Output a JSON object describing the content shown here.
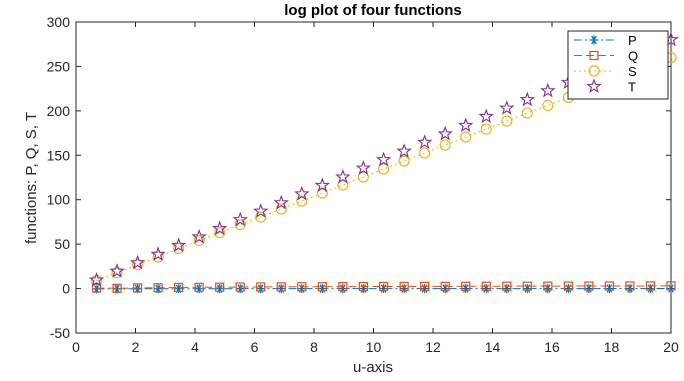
{
  "chart_data": {
    "type": "line",
    "title": "log plot of four functions",
    "xlabel": "u-axis",
    "ylabel": "functions: P, Q, S, T",
    "xlim": [
      0,
      20
    ],
    "ylim": [
      -50,
      300
    ],
    "xticks": [
      0,
      2,
      4,
      6,
      8,
      10,
      12,
      14,
      16,
      18,
      20
    ],
    "yticks": [
      -50,
      0,
      50,
      100,
      150,
      200,
      250,
      300
    ],
    "grid": false,
    "legend_position": "top-right",
    "x": [
      0.69,
      1.38,
      2.07,
      2.76,
      3.45,
      4.14,
      4.83,
      5.52,
      6.21,
      6.9,
      7.59,
      8.28,
      8.97,
      9.66,
      10.34,
      11.03,
      11.72,
      12.41,
      13.1,
      13.79,
      14.48,
      15.17,
      15.86,
      16.55,
      17.24,
      17.93,
      18.62,
      19.31,
      20.0
    ],
    "series": [
      {
        "name": "P",
        "color": "#0072bd",
        "line": "dash-dot",
        "marker": "asterisk",
        "values": [
          -0.37,
          -0.32,
          -0.27,
          -0.23,
          -0.2,
          -0.17,
          -0.15,
          -0.13,
          -0.11,
          -0.09,
          -0.08,
          -0.07,
          -0.06,
          -0.05,
          -0.04,
          -0.03,
          -0.03,
          -0.02,
          -0.02,
          -0.01,
          -0.01,
          -0.01,
          0.0,
          0.0,
          0.0,
          0.01,
          0.01,
          0.01,
          0.02
        ]
      },
      {
        "name": "Q",
        "color": "#d95319",
        "line": "dash",
        "marker": "square",
        "values": [
          0.69,
          0.32,
          0.73,
          1.02,
          1.24,
          1.42,
          1.57,
          1.71,
          1.83,
          1.93,
          2.03,
          2.11,
          2.19,
          2.27,
          2.34,
          2.4,
          2.46,
          2.52,
          2.57,
          2.62,
          2.67,
          2.72,
          2.76,
          2.81,
          2.85,
          2.89,
          2.92,
          2.96,
          3.0
        ]
      },
      {
        "name": "S",
        "color": "#edb120",
        "line": "dotted",
        "marker": "circle",
        "values": [
          9.0,
          18.0,
          27.0,
          35.5,
          45.0,
          54.0,
          63.0,
          72.0,
          80.5,
          89.5,
          98.5,
          107.5,
          116.5,
          125.5,
          134.5,
          143.5,
          152.5,
          161.5,
          170.5,
          179.5,
          188.5,
          197.5,
          206.0,
          215.0,
          224.0,
          233.0,
          242.0,
          251.0,
          260.0
        ]
      },
      {
        "name": "T",
        "color": "#7e2f8e",
        "line": "none",
        "marker": "pentagram",
        "values": [
          9.5,
          19.5,
          29.0,
          38.5,
          48.5,
          58.0,
          67.5,
          77.5,
          87.0,
          96.5,
          106.5,
          116.0,
          125.5,
          135.5,
          145.0,
          154.5,
          164.5,
          174.0,
          183.5,
          193.5,
          203.0,
          212.5,
          222.5,
          232.0,
          241.5,
          251.5,
          261.0,
          270.5,
          280.0
        ]
      }
    ]
  }
}
